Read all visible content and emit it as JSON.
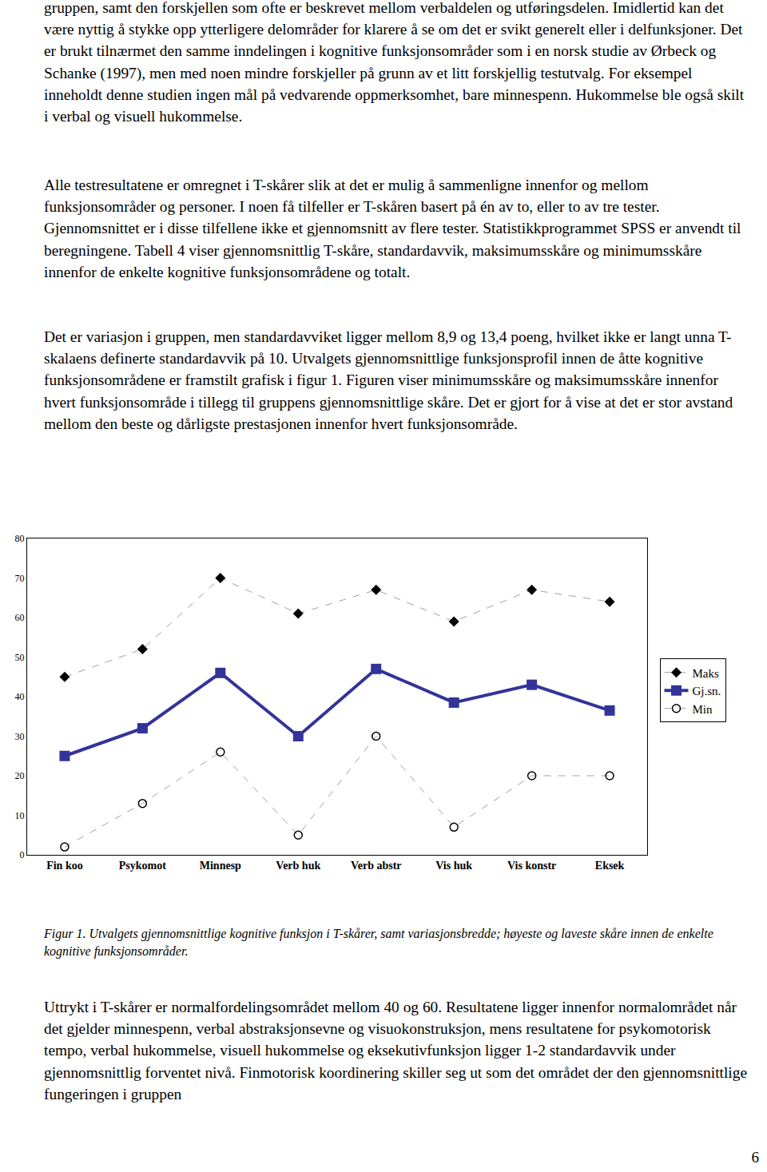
{
  "paragraphs_top": [
    "gruppen, samt den forskjellen som ofte er beskrevet mellom verbaldelen og utføringsdelen. Imidlertid kan det være nyttig å stykke opp ytterligere delområder for klarere å se om det er svikt generelt eller i delfunksjoner. Det er brukt tilnærmet den samme inndelingen i kognitive funksjonsområder som i en norsk studie av Ørbeck og Schanke (1997), men med noen mindre forskjeller på grunn av et litt forskjellig testutvalg. For eksempel inneholdt denne studien ingen mål på vedvarende oppmerksomhet, bare minnespenn. Hukommelse ble også skilt i verbal og visuell hukommelse.",
    "Alle testresultatene er omregnet i T-skårer slik at det er mulig å sammenligne innenfor og mellom funksjonsområder og personer. I noen få tilfeller er T-skåren basert på én av to, eller to av tre tester. Gjennomsnittet er i disse tilfellene ikke et gjennomsnitt av flere tester. Statistikkprogrammet SPSS er anvendt til beregningene. Tabell 4 viser gjennomsnittlig T-skåre, standardavvik, maksimumsskåre og minimumsskåre innenfor de enkelte kognitive funksjonsområdene og totalt.",
    "Det er variasjon i gruppen, men standardavviket ligger mellom 8,9 og 13,4 poeng, hvilket ikke er langt unna T-skalaens definerte standardavvik på 10. Utvalgets gjennomsnittlige funksjonsprofil innen de åtte kognitive funksjonsområdene er framstilt grafisk i figur 1. Figuren viser minimumsskåre og maksimumsskåre innenfor hvert funksjonsområde i tillegg til gruppens gjennomsnittlige skåre. Det er gjort for å vise at det er stor avstand mellom den beste og dårligste prestasjonen innenfor hvert funksjonsområde."
  ],
  "chart_data": {
    "type": "line",
    "categories": [
      "Fin koo",
      "Psykomot",
      "Minnesp",
      "Verb huk",
      "Verb abstr",
      "Vis huk",
      "Vis konstr",
      "Eksek"
    ],
    "series": [
      {
        "name": "Maks",
        "color": "#000000",
        "marker": "diamond",
        "line_style": "dashed",
        "values": [
          45,
          52,
          70,
          61,
          67,
          59,
          67,
          64
        ]
      },
      {
        "name": "Gj.sn.",
        "color": "#333399",
        "marker": "square",
        "line_style": "solid",
        "values": [
          25,
          32,
          46,
          30,
          47,
          38.5,
          43,
          36.5
        ]
      },
      {
        "name": "Min",
        "color": "#000000",
        "marker": "circle-open",
        "line_style": "dashed",
        "values": [
          2,
          13,
          26,
          5,
          30,
          7,
          20,
          20
        ]
      }
    ],
    "ylim": [
      0,
      80
    ],
    "yticks": [
      0,
      10,
      20,
      30,
      40,
      50,
      60,
      70,
      80
    ],
    "grid": false,
    "legend": "right"
  },
  "caption": "Figur 1. Utvalgets gjennomsnittlige kognitive funksjon i T-skårer, samt variasjonsbredde; høyeste og laveste skåre innen de enkelte kognitive funksjonsområder.",
  "paragraphs_bottom": [
    "Uttrykt i T-skårer er normalfordelingsområdet mellom 40 og 60. Resultatene ligger innenfor normalområdet når det gjelder minnespenn, verbal abstraksjonsevne og visuokonstruksjon, mens resultatene for psykomotorisk tempo, verbal hukommelse, visuell hukommelse og eksekutivfunksjon ligger 1-2 standardavvik under gjennomsnittlig forventet nivå. Finmotorisk koordinering skiller seg ut som det området der den gjennomsnittlige fungeringen i gruppen"
  ],
  "page_number": "6"
}
